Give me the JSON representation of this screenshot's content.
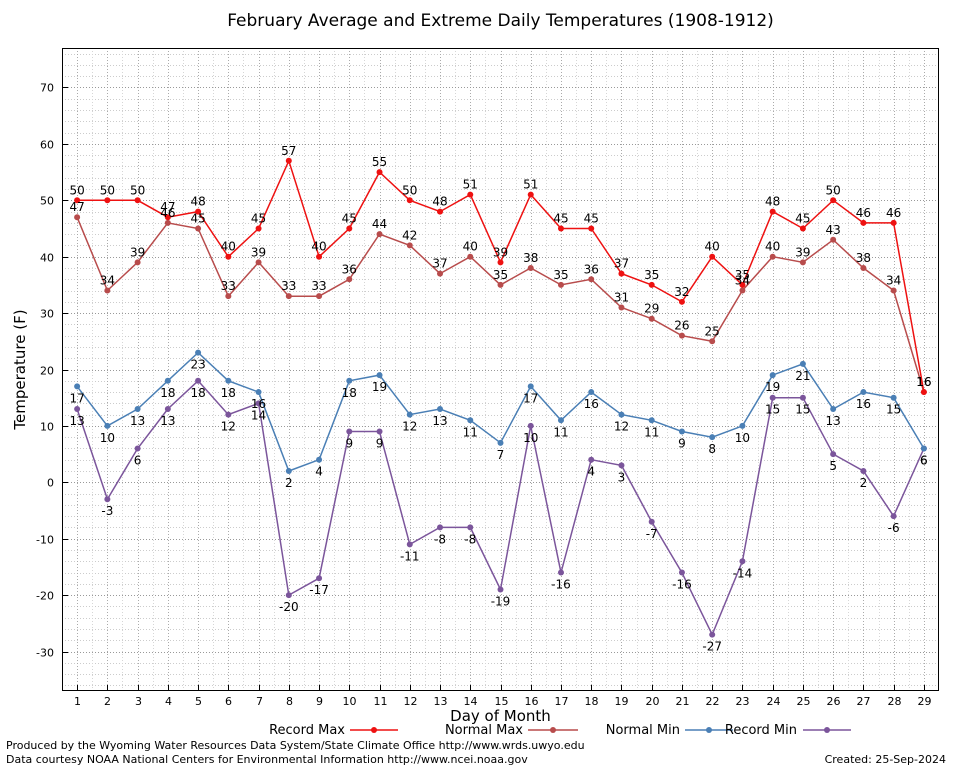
{
  "chart_data": {
    "type": "line",
    "title": "February Average and Extreme Daily Temperatures (1908-1912)",
    "xlabel": "Day of Month",
    "ylabel": "Temperature (F)",
    "x": [
      1,
      2,
      3,
      4,
      5,
      6,
      7,
      8,
      9,
      10,
      11,
      12,
      13,
      14,
      15,
      16,
      17,
      18,
      19,
      20,
      21,
      22,
      23,
      24,
      25,
      26,
      27,
      28,
      29
    ],
    "xlim": [
      0.5,
      29.5
    ],
    "ylim": [
      -37,
      77
    ],
    "yticks": [
      -30,
      -20,
      -10,
      0,
      10,
      20,
      30,
      40,
      50,
      60,
      70
    ],
    "grid": true,
    "legend_position": "bottom",
    "series": [
      {
        "name": "Record Max",
        "color": "#ee1111",
        "values": [
          50,
          50,
          50,
          47,
          48,
          40,
          45,
          57,
          40,
          45,
          55,
          50,
          48,
          51,
          39,
          51,
          45,
          45,
          37,
          35,
          32,
          40,
          35,
          48,
          45,
          50,
          46,
          46,
          16
        ]
      },
      {
        "name": "Normal Max",
        "color": "#b84c4c",
        "values": [
          47,
          34,
          39,
          46,
          45,
          33,
          39,
          33,
          33,
          36,
          44,
          42,
          37,
          40,
          35,
          38,
          35,
          36,
          31,
          29,
          26,
          25,
          34,
          40,
          39,
          43,
          38,
          34,
          16
        ]
      },
      {
        "name": "Normal Min",
        "color": "#4a7fb5",
        "values": [
          17,
          10,
          13,
          18,
          23,
          18,
          16,
          2,
          4,
          18,
          19,
          12,
          13,
          11,
          7,
          17,
          11,
          16,
          12,
          11,
          9,
          8,
          10,
          19,
          21,
          13,
          16,
          15,
          6
        ]
      },
      {
        "name": "Record Min",
        "color": "#7b559b",
        "values": [
          13,
          -3,
          6,
          13,
          18,
          12,
          14,
          -20,
          -17,
          9,
          9,
          -11,
          -8,
          -8,
          -19,
          10,
          -16,
          4,
          3,
          -7,
          -16,
          -27,
          -14,
          15,
          15,
          5,
          2,
          -6,
          6
        ]
      }
    ]
  },
  "footer": {
    "produced_by": "Produced by the Wyoming Water Resources Data System/State Climate Office http://www.wrds.uwyo.edu",
    "courtesy": "Data courtesy NOAA National Centers for Environmental Information http://www.ncei.noaa.gov",
    "created": "Created:  25-Sep-2024"
  }
}
